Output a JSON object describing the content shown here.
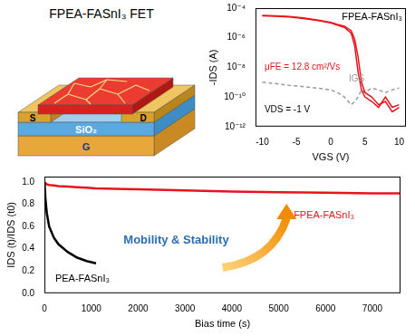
{
  "schematic": {
    "title": "FPEA-FASnI₃ FET",
    "source": "S",
    "drain": "D",
    "dielectric": "SiO₂",
    "gate": "G"
  },
  "annotation": "Mobility & Stability",
  "chart_data": [
    {
      "type": "line",
      "title": "FPEA-FASnI₃",
      "x_label": "VGS (V)",
      "y_label": "-IDS (A)",
      "log": "y",
      "grid": false,
      "annotations": [
        "μFE = 12.8 cm²/Vs",
        "VDS = -1 V"
      ],
      "xlim": [
        -11,
        11
      ],
      "xticks": [
        -10,
        -5,
        0,
        5,
        10
      ],
      "ylim": [
        1e-12,
        0.0001
      ],
      "yticks": [
        {
          "value": 1e-12,
          "label": "10⁻¹²"
        },
        {
          "value": 1e-10,
          "label": "10⁻¹⁰"
        },
        {
          "value": 1e-08,
          "label": "10⁻⁸"
        },
        {
          "value": 1e-06,
          "label": "10⁻⁶"
        },
        {
          "value": 0.0001,
          "label": "10⁻⁴"
        }
      ],
      "x": [
        -10,
        -8,
        -6,
        -4,
        -2,
        0,
        1,
        2,
        3,
        3.5,
        4,
        4.5,
        5,
        6,
        7,
        8,
        9,
        10
      ],
      "series": [
        {
          "color": "#e8141c",
          "line_style": "solid",
          "values": [
            3e-05,
            2.8e-05,
            2.5e-05,
            2e-05,
            1.5e-05,
            1e-05,
            7e-06,
            5e-06,
            2e-06,
            3e-07,
            5e-09,
            3e-10,
            1e-10,
            5e-11,
            2e-11,
            1e-10,
            2e-11,
            3e-11
          ]
        },
        {
          "color": "#e8141c",
          "line_style": "solid",
          "values": [
            3.2e-05,
            3e-05,
            2.7e-05,
            2.2e-05,
            1.6e-05,
            1.1e-05,
            8e-06,
            6e-06,
            3e-06,
            8e-07,
            5e-08,
            1e-09,
            2e-10,
            1e-10,
            3e-11,
            5e-11,
            1e-11,
            2e-11
          ]
        },
        {
          "name": "IGS",
          "color": "#9a9a9a",
          "line_style": "dashed",
          "values": [
            1e-09,
            8e-10,
            6e-10,
            5e-10,
            4e-10,
            3e-10,
            2e-10,
            1e-10,
            3e-11,
            5e-11,
            1e-10,
            3e-10,
            2e-10,
            4e-10,
            3e-10,
            2e-10,
            3e-10,
            4e-10
          ]
        }
      ]
    },
    {
      "type": "line",
      "x_label": "Bias time (s)",
      "y_label": "IDS (t)/IDS (t0)",
      "grid": false,
      "xlim": [
        0,
        7600
      ],
      "xticks": [
        0,
        1000,
        2000,
        3000,
        4000,
        5000,
        6000,
        7000
      ],
      "ylim": [
        0,
        1.05
      ],
      "yticks": [
        {
          "value": 0,
          "label": "0.0"
        },
        {
          "value": 0.2,
          "label": "0.2"
        },
        {
          "value": 0.4,
          "label": "0.4"
        },
        {
          "value": 0.6,
          "label": "0.6"
        },
        {
          "value": 0.8,
          "label": "0.8"
        },
        {
          "value": 1,
          "label": "1.0"
        }
      ],
      "x": [
        0,
        20,
        50,
        100,
        200,
        300,
        500,
        700,
        900,
        1100,
        1500,
        2000,
        3000,
        4000,
        5000,
        6000,
        7000,
        7600
      ],
      "series": [
        {
          "name": "PEA-FASnI₃",
          "color": "#000000",
          "values": [
            1.0,
            0.85,
            0.72,
            0.6,
            0.5,
            0.44,
            0.37,
            0.32,
            0.29,
            0.27,
            null,
            null,
            null,
            null,
            null,
            null,
            null,
            null
          ]
        },
        {
          "name": "FPEA-FASnI₃",
          "color": "#e8141c",
          "values": [
            1.0,
            0.99,
            0.98,
            0.975,
            0.97,
            0.965,
            0.96,
            0.955,
            0.95,
            0.945,
            0.94,
            0.935,
            0.925,
            0.915,
            0.91,
            0.905,
            0.9,
            0.9
          ]
        }
      ]
    }
  ]
}
